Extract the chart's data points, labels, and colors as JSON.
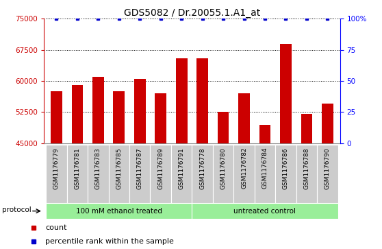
{
  "title": "GDS5082 / Dr.20055.1.A1_at",
  "samples": [
    "GSM1176779",
    "GSM1176781",
    "GSM1176783",
    "GSM1176785",
    "GSM1176787",
    "GSM1176789",
    "GSM1176791",
    "GSM1176778",
    "GSM1176780",
    "GSM1176782",
    "GSM1176784",
    "GSM1176786",
    "GSM1176788",
    "GSM1176790"
  ],
  "counts": [
    57500,
    59000,
    61000,
    57500,
    60500,
    57000,
    65500,
    65500,
    52500,
    57000,
    49500,
    69000,
    52000,
    54500
  ],
  "percentile_ranks": [
    100,
    100,
    100,
    100,
    100,
    100,
    100,
    100,
    100,
    100,
    100,
    100,
    100,
    100
  ],
  "bar_color": "#cc0000",
  "dot_color": "#0000cc",
  "ylim_left": [
    45000,
    75000
  ],
  "ylim_right": [
    0,
    100
  ],
  "yticks_left": [
    45000,
    52500,
    60000,
    67500,
    75000
  ],
  "yticks_right": [
    0,
    25,
    50,
    75,
    100
  ],
  "group1_label": "100 mM ethanol treated",
  "group2_label": "untreated control",
  "group1_count": 7,
  "group2_count": 7,
  "protocol_label": "protocol",
  "legend_count_label": "count",
  "legend_pct_label": "percentile rank within the sample",
  "bg_plot": "#ffffff",
  "bg_group": "#99ee99",
  "bg_xtick": "#cccccc",
  "dotted_grid_color": "#000000",
  "title_fontsize": 10,
  "tick_fontsize": 7.5,
  "label_fontsize": 8
}
